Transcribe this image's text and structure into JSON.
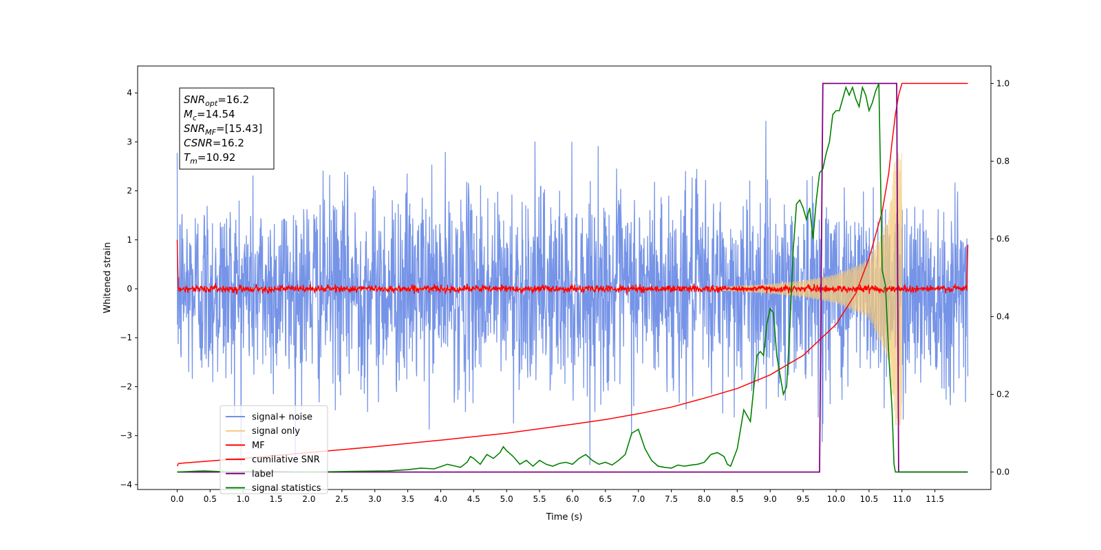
{
  "chart_data": {
    "type": "line",
    "title": "",
    "xlabel": "Time (s)",
    "ylabel_left": "Whitened strain",
    "ylabel_right": "",
    "xlim": [
      -0.6,
      12.35
    ],
    "ylim_left": [
      -4.1,
      4.55
    ],
    "ylim_right": [
      -0.045,
      1.045
    ],
    "x_ticks": [
      "0.0",
      "0.5",
      "1.0",
      "1.5",
      "2.0",
      "2.5",
      "3.0",
      "3.5",
      "4.0",
      "4.5",
      "5.0",
      "5.5",
      "6.0",
      "6.5",
      "7.0",
      "7.5",
      "8.0",
      "8.5",
      "9.0",
      "9.5",
      "10.0",
      "10.5",
      "11.0",
      "11.5"
    ],
    "y_ticks_left": [
      "4",
      "3",
      "2",
      "1",
      "0",
      "−1",
      "−2",
      "−3",
      "−4"
    ],
    "y_ticks_right": [
      "1.0",
      "0.8",
      "0.6",
      "0.4",
      "0.2",
      "0.0"
    ],
    "annotation_lines": [
      {
        "base": "SNR",
        "sub": "opt",
        "value": "=16.2"
      },
      {
        "base": "M",
        "sub": "c",
        "value": "=14.54"
      },
      {
        "base": "SNR",
        "sub": "MF",
        "value": "=[15.43]"
      },
      {
        "base": "CSNR",
        "sub": "",
        "value": "=16.2"
      },
      {
        "base": "T",
        "sub": "m",
        "value": "=10.92"
      }
    ],
    "legend": {
      "placement": "lower-left",
      "entries": [
        {
          "label": "signal+ noise",
          "color": "#6f8ee6"
        },
        {
          "label": "signal only",
          "color": "#f5c979"
        },
        {
          "label": "MF",
          "color": "#ff0000"
        },
        {
          "label": "cumilative SNR",
          "color": "#ff0000"
        },
        {
          "label": "label",
          "color": "#800080"
        },
        {
          "label": "signal statistics",
          "color": "#008000"
        }
      ]
    },
    "series": [
      {
        "name": "signal+ noise",
        "axis": "left",
        "color": "#6f8ee6",
        "x_range": [
          0.0,
          12.0
        ],
        "noise_sigma": 1.0,
        "peak_envelope": [
          -3.6,
          3.5
        ]
      },
      {
        "name": "signal only",
        "axis": "left",
        "color": "#f5c979",
        "x_range": [
          0.0,
          11.0
        ],
        "amplitude": {
          "x": [
            8.0,
            9.0,
            9.5,
            10.0,
            10.5,
            10.8,
            10.9
          ],
          "y": [
            0.02,
            0.1,
            0.17,
            0.3,
            0.6,
            1.5,
            2.8
          ]
        }
      },
      {
        "name": "MF",
        "axis": "left",
        "color": "#ff0000",
        "x_range": [
          0.0,
          12.0
        ],
        "start_value": 1.0,
        "end_value": 0.9,
        "level": 0.0,
        "jitter": 0.06
      },
      {
        "name": "cumilative SNR",
        "axis": "right",
        "color": "#ff0000",
        "x": [
          0.0,
          0.02,
          1.0,
          2.0,
          3.0,
          4.0,
          5.0,
          6.0,
          6.5,
          7.0,
          7.5,
          8.0,
          8.5,
          9.0,
          9.5,
          10.0,
          10.3,
          10.5,
          10.7,
          10.8,
          10.85,
          10.9,
          10.95,
          11.0,
          12.0
        ],
        "y": [
          0.015,
          0.022,
          0.035,
          0.05,
          0.065,
          0.082,
          0.1,
          0.123,
          0.135,
          0.15,
          0.167,
          0.19,
          0.215,
          0.25,
          0.3,
          0.38,
          0.46,
          0.55,
          0.67,
          0.77,
          0.85,
          0.92,
          0.97,
          1.0,
          1.0
        ]
      },
      {
        "name": "label",
        "axis": "right",
        "color": "#800080",
        "x": [
          0.0,
          9.75,
          9.8,
          10.92,
          10.95,
          12.0
        ],
        "y": [
          0.0,
          0.0,
          1.0,
          1.0,
          0.0,
          0.0
        ]
      },
      {
        "name": "signal statistics",
        "axis": "right",
        "color": "#008000",
        "x": [
          0.0,
          0.4,
          0.8,
          1.2,
          1.6,
          2.0,
          2.4,
          2.8,
          3.2,
          3.5,
          3.7,
          3.9,
          4.0,
          4.1,
          4.2,
          4.3,
          4.4,
          4.45,
          4.5,
          4.6,
          4.7,
          4.8,
          4.9,
          4.95,
          5.0,
          5.1,
          5.2,
          5.3,
          5.4,
          5.5,
          5.6,
          5.7,
          5.8,
          5.9,
          6.0,
          6.1,
          6.2,
          6.3,
          6.4,
          6.5,
          6.6,
          6.7,
          6.8,
          6.9,
          7.0,
          7.05,
          7.1,
          7.2,
          7.3,
          7.4,
          7.5,
          7.6,
          7.7,
          7.8,
          7.9,
          8.0,
          8.1,
          8.2,
          8.3,
          8.35,
          8.4,
          8.5,
          8.6,
          8.7,
          8.8,
          8.85,
          8.9,
          8.95,
          9.0,
          9.05,
          9.1,
          9.15,
          9.2,
          9.25,
          9.3,
          9.35,
          9.4,
          9.45,
          9.5,
          9.55,
          9.6,
          9.65,
          9.7,
          9.75,
          9.8,
          9.85,
          9.9,
          9.95,
          10.0,
          10.05,
          10.1,
          10.15,
          10.2,
          10.25,
          10.3,
          10.35,
          10.4,
          10.45,
          10.5,
          10.55,
          10.6,
          10.65,
          10.7,
          10.75,
          10.8,
          10.85,
          10.88,
          10.9,
          10.95,
          11.0,
          12.0
        ],
        "y": [
          0.0,
          0.003,
          0.0,
          0.002,
          0.001,
          0.0,
          0.001,
          0.002,
          0.003,
          0.006,
          0.01,
          0.008,
          0.014,
          0.02,
          0.016,
          0.012,
          0.025,
          0.04,
          0.035,
          0.02,
          0.045,
          0.035,
          0.05,
          0.065,
          0.055,
          0.04,
          0.02,
          0.03,
          0.015,
          0.03,
          0.02,
          0.015,
          0.022,
          0.025,
          0.02,
          0.035,
          0.045,
          0.03,
          0.02,
          0.025,
          0.018,
          0.03,
          0.045,
          0.1,
          0.11,
          0.085,
          0.06,
          0.03,
          0.015,
          0.012,
          0.01,
          0.018,
          0.015,
          0.018,
          0.02,
          0.025,
          0.045,
          0.05,
          0.04,
          0.02,
          0.015,
          0.06,
          0.16,
          0.13,
          0.3,
          0.31,
          0.3,
          0.38,
          0.42,
          0.41,
          0.3,
          0.25,
          0.2,
          0.22,
          0.38,
          0.57,
          0.69,
          0.7,
          0.68,
          0.65,
          0.68,
          0.6,
          0.7,
          0.77,
          0.78,
          0.82,
          0.85,
          0.92,
          0.93,
          0.93,
          0.96,
          0.99,
          0.97,
          0.99,
          0.96,
          0.94,
          0.99,
          0.97,
          0.93,
          0.95,
          0.98,
          1.0,
          0.52,
          0.48,
          0.3,
          0.16,
          0.02,
          0.0,
          0.0,
          0.0,
          0.0
        ]
      }
    ]
  }
}
